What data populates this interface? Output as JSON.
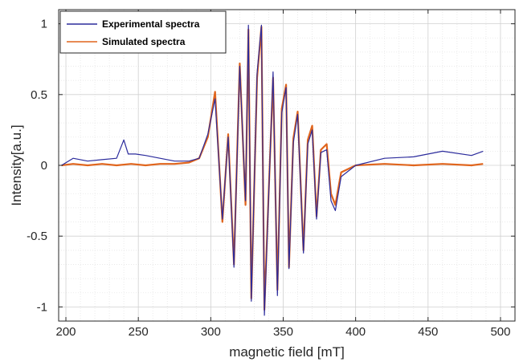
{
  "chart_data": {
    "type": "line",
    "xlabel": "magnetic field [mT]",
    "ylabel": "Intensity[a.u.]",
    "xlim": [
      195,
      510
    ],
    "ylim": [
      -1.1,
      1.1
    ],
    "xticks": [
      200,
      250,
      300,
      350,
      400,
      450,
      500
    ],
    "yticks": [
      -1,
      -0.5,
      0,
      0.5,
      1
    ],
    "grid": true,
    "minor_grid": true,
    "legend_position": "top-left",
    "series": [
      {
        "name": "Experimental spectra",
        "color": "#2b2b9c",
        "x": [
          197,
          205,
          215,
          225,
          235,
          240,
          243,
          248,
          255,
          265,
          275,
          285,
          292,
          298,
          303,
          308,
          312,
          316,
          320,
          324,
          326,
          328,
          332,
          335,
          337,
          340,
          343,
          346,
          349,
          352,
          354,
          357,
          360,
          364,
          367,
          370,
          373,
          376,
          380,
          383,
          386,
          390,
          400,
          420,
          440,
          460,
          480,
          488
        ],
        "y": [
          0.0,
          0.05,
          0.03,
          0.04,
          0.05,
          0.18,
          0.08,
          0.08,
          0.07,
          0.05,
          0.03,
          0.03,
          0.05,
          0.22,
          0.47,
          -0.38,
          0.2,
          -0.72,
          0.7,
          -0.25,
          0.99,
          -0.96,
          0.65,
          0.99,
          -1.06,
          -0.2,
          0.66,
          -0.92,
          0.37,
          0.55,
          -0.73,
          0.16,
          0.36,
          -0.62,
          0.15,
          0.25,
          -0.38,
          0.09,
          0.11,
          -0.25,
          -0.32,
          -0.08,
          0.0,
          0.05,
          0.06,
          0.1,
          0.07,
          0.1
        ]
      },
      {
        "name": "Simulated spectra",
        "color": "#e0651d",
        "x": [
          197,
          205,
          215,
          225,
          235,
          245,
          255,
          265,
          275,
          285,
          292,
          298,
          303,
          308,
          312,
          316,
          320,
          324,
          326,
          328,
          332,
          335,
          337,
          340,
          343,
          346,
          349,
          352,
          354,
          357,
          360,
          364,
          367,
          370,
          373,
          376,
          380,
          383,
          386,
          390,
          400,
          420,
          440,
          460,
          480,
          488
        ],
        "y": [
          0.0,
          0.01,
          0.0,
          0.01,
          0.0,
          0.01,
          0.0,
          0.01,
          0.01,
          0.02,
          0.05,
          0.2,
          0.52,
          -0.4,
          0.22,
          -0.7,
          0.72,
          -0.28,
          0.96,
          -0.94,
          0.62,
          0.98,
          -1.02,
          -0.18,
          0.62,
          -0.88,
          0.4,
          0.57,
          -0.72,
          0.19,
          0.38,
          -0.6,
          0.18,
          0.28,
          -0.36,
          0.11,
          0.15,
          -0.2,
          -0.28,
          -0.05,
          0.0,
          0.01,
          0.0,
          0.01,
          0.0,
          0.01
        ]
      }
    ]
  }
}
